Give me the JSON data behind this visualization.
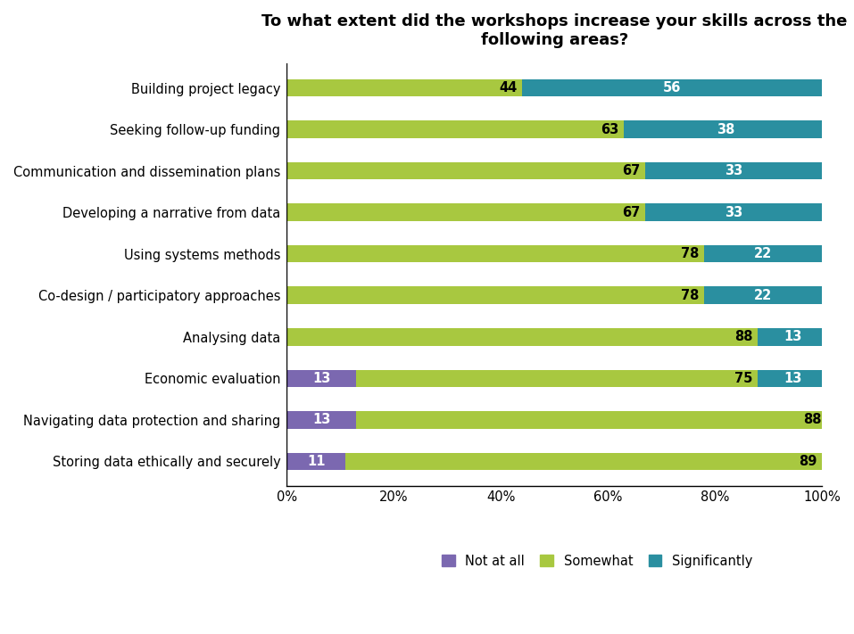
{
  "title": "To what extent did the workshops increase your skills across the\nfollowing areas?",
  "categories": [
    "Building project legacy",
    "Seeking follow-up funding",
    "Communication and dissemination plans",
    "Developing a narrative from data",
    "Using systems methods",
    "Co-design / participatory approaches",
    "Analysing data",
    "Economic evaluation",
    "Navigating data protection and sharing",
    "Storing data ethically and securely"
  ],
  "not_at_all": [
    0,
    0,
    0,
    0,
    0,
    0,
    0,
    13,
    13,
    11
  ],
  "somewhat": [
    44,
    63,
    67,
    67,
    78,
    78,
    88,
    75,
    88,
    89
  ],
  "significantly": [
    56,
    38,
    33,
    33,
    22,
    22,
    13,
    13,
    0,
    0
  ],
  "color_not_at_all": "#7b68b0",
  "color_somewhat": "#a8c840",
  "color_significantly": "#2a8fa0",
  "legend_labels": [
    "Not at all",
    "Somewhat",
    "Significantly"
  ],
  "title_fontsize": 13,
  "label_fontsize": 10.5,
  "tick_fontsize": 10.5,
  "bar_value_fontsize": 10.5,
  "background_color": "#ffffff",
  "bar_height": 0.42
}
